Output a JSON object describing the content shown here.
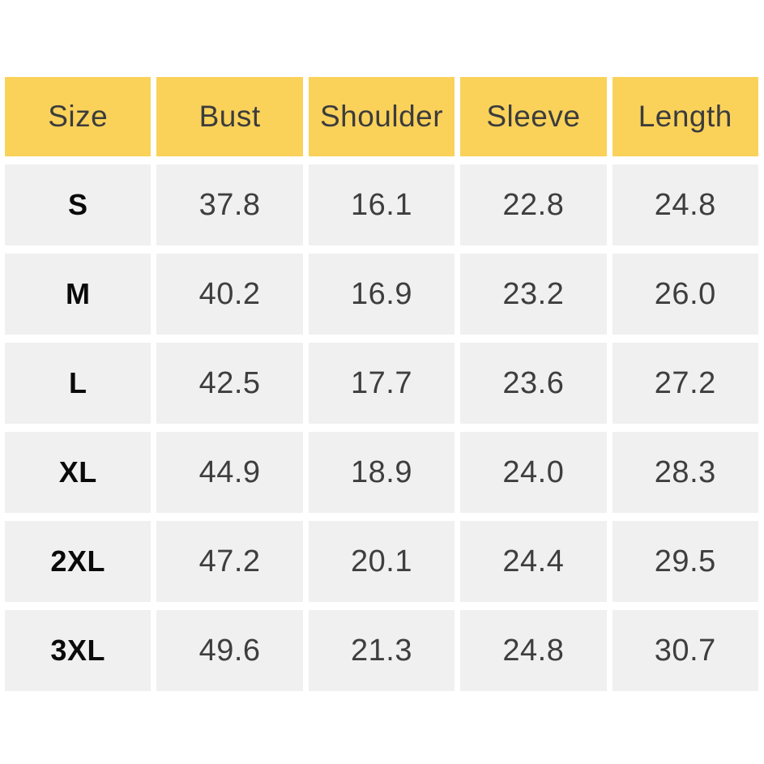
{
  "page": {
    "background_color": "#FFFFFF"
  },
  "table": {
    "name": "garment-size-chart",
    "headers": [
      "Size",
      "Bust",
      "Shoulder",
      "Sleeve",
      "Length"
    ],
    "rows": [
      {
        "size": "S",
        "values": [
          "37.8",
          "16.1",
          "22.8",
          "24.8"
        ]
      },
      {
        "size": "M",
        "values": [
          "40.2",
          "16.9",
          "23.2",
          "26.0"
        ]
      },
      {
        "size": "L",
        "values": [
          "42.5",
          "17.7",
          "23.6",
          "27.2"
        ]
      },
      {
        "size": "XL",
        "values": [
          "44.9",
          "18.9",
          "24.0",
          "28.3"
        ]
      },
      {
        "size": "2XL",
        "values": [
          "47.2",
          "20.1",
          "24.4",
          "29.5"
        ]
      },
      {
        "size": "3XL",
        "values": [
          "49.6",
          "21.3",
          "24.8",
          "30.7"
        ]
      }
    ],
    "colors": {
      "header_background": "#FAD25A",
      "header_text": "#3C3C3C",
      "cell_background": "#F0F0F0",
      "value_text": "#3E3E3E",
      "size_text": "#0A0A0A"
    }
  }
}
